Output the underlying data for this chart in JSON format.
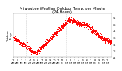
{
  "title": "Milwaukee Weather Outdoor Temp. per Minute\n(24 Hours)",
  "ylabel": "Outdoor\nTemp.",
  "line_color": "#ff0000",
  "background_color": "#ffffff",
  "ylim": [
    21,
    54
  ],
  "yticks": [
    21,
    26,
    31,
    36,
    41,
    46,
    51
  ],
  "vline_x": [
    194,
    778
  ],
  "vline_color": "#aaaaaa",
  "dot_size": 0.5,
  "title_fontsize": 3.8,
  "tick_fontsize": 2.5,
  "ylabel_fontsize": 3.0,
  "seed": 42,
  "temp_shape": {
    "t0_val": 36,
    "min_hour": 5.5,
    "min_val": 24,
    "max_hour": 13.5,
    "max_val": 49,
    "t18_val": 45,
    "t22_val": 35,
    "t24_val": 32
  },
  "noise_std": 1.0
}
